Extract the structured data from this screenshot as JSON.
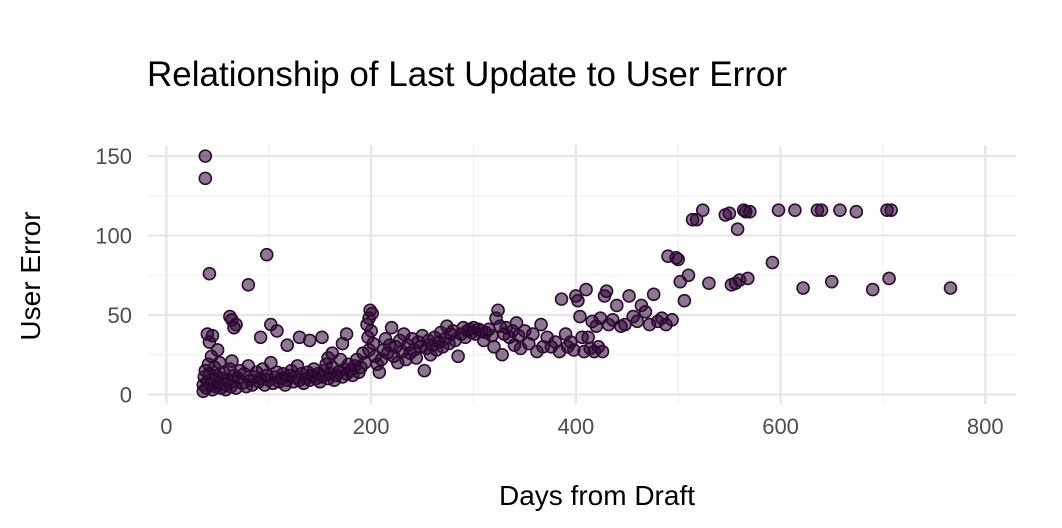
{
  "chart_data": {
    "type": "scatter",
    "title": "Relationship of Last Update to User Error",
    "xlabel": "Days from Draft",
    "ylabel": "User Error",
    "xlim": [
      -18,
      830
    ],
    "ylim": [
      -6,
      157
    ],
    "x_ticks": [
      0,
      200,
      400,
      600,
      800
    ],
    "y_ticks": [
      0,
      50,
      100,
      150
    ],
    "grid": true,
    "legend": "none",
    "point_color": "#2d0a33",
    "point_opacity": 0.55,
    "points": [
      [
        38,
        150
      ],
      [
        38,
        136
      ],
      [
        42,
        76
      ],
      [
        40,
        38
      ],
      [
        45,
        37
      ],
      [
        42,
        33
      ],
      [
        50,
        28
      ],
      [
        62,
        49
      ],
      [
        64,
        47
      ],
      [
        66,
        42
      ],
      [
        68,
        44
      ],
      [
        80,
        69
      ],
      [
        98,
        88
      ],
      [
        92,
        36
      ],
      [
        102,
        44
      ],
      [
        108,
        40
      ],
      [
        118,
        31
      ],
      [
        130,
        36
      ],
      [
        140,
        34
      ],
      [
        152,
        36
      ],
      [
        158,
        23
      ],
      [
        162,
        26
      ],
      [
        172,
        32
      ],
      [
        176,
        38
      ],
      [
        36,
        2
      ],
      [
        36,
        6
      ],
      [
        37,
        11
      ],
      [
        38,
        15
      ],
      [
        39,
        4
      ],
      [
        40,
        8
      ],
      [
        41,
        19
      ],
      [
        42,
        13
      ],
      [
        43,
        6
      ],
      [
        44,
        24
      ],
      [
        45,
        3
      ],
      [
        46,
        9
      ],
      [
        47,
        17
      ],
      [
        48,
        5
      ],
      [
        49,
        12
      ],
      [
        50,
        7
      ],
      [
        52,
        20
      ],
      [
        53,
        4
      ],
      [
        54,
        10
      ],
      [
        56,
        14
      ],
      [
        57,
        6
      ],
      [
        58,
        3
      ],
      [
        60,
        9
      ],
      [
        62,
        16
      ],
      [
        63,
        5
      ],
      [
        64,
        21
      ],
      [
        65,
        8
      ],
      [
        66,
        12
      ],
      [
        68,
        4
      ],
      [
        70,
        10
      ],
      [
        72,
        15
      ],
      [
        74,
        7
      ],
      [
        76,
        13
      ],
      [
        78,
        5
      ],
      [
        80,
        18
      ],
      [
        82,
        9
      ],
      [
        84,
        6
      ],
      [
        86,
        11
      ],
      [
        88,
        14
      ],
      [
        90,
        8
      ],
      [
        92,
        10
      ],
      [
        94,
        16
      ],
      [
        96,
        6
      ],
      [
        98,
        12
      ],
      [
        100,
        9
      ],
      [
        102,
        20
      ],
      [
        104,
        7
      ],
      [
        106,
        11
      ],
      [
        108,
        14
      ],
      [
        110,
        8
      ],
      [
        112,
        10
      ],
      [
        114,
        13
      ],
      [
        116,
        6
      ],
      [
        118,
        9
      ],
      [
        120,
        12
      ],
      [
        122,
        15
      ],
      [
        124,
        8
      ],
      [
        126,
        11
      ],
      [
        128,
        18
      ],
      [
        130,
        9
      ],
      [
        132,
        13
      ],
      [
        134,
        7
      ],
      [
        136,
        10
      ],
      [
        138,
        14
      ],
      [
        140,
        9
      ],
      [
        142,
        12
      ],
      [
        144,
        16
      ],
      [
        146,
        10
      ],
      [
        148,
        13
      ],
      [
        150,
        8
      ],
      [
        152,
        11
      ],
      [
        154,
        15
      ],
      [
        156,
        19
      ],
      [
        158,
        10
      ],
      [
        160,
        13
      ],
      [
        162,
        17
      ],
      [
        164,
        9
      ],
      [
        166,
        12
      ],
      [
        168,
        14
      ],
      [
        170,
        22
      ],
      [
        172,
        11
      ],
      [
        174,
        16
      ],
      [
        176,
        13
      ],
      [
        178,
        19
      ],
      [
        180,
        15
      ],
      [
        182,
        12
      ],
      [
        184,
        18
      ],
      [
        186,
        22
      ],
      [
        188,
        14
      ],
      [
        190,
        17
      ],
      [
        192,
        26
      ],
      [
        194,
        20
      ],
      [
        196,
        44
      ],
      [
        197,
        36
      ],
      [
        198,
        48
      ],
      [
        199,
        53
      ],
      [
        200,
        40
      ],
      [
        201,
        51
      ],
      [
        198,
        28
      ],
      [
        202,
        32
      ],
      [
        204,
        24
      ],
      [
        206,
        19
      ],
      [
        208,
        14
      ],
      [
        210,
        22
      ],
      [
        212,
        28
      ],
      [
        214,
        35
      ],
      [
        216,
        26
      ],
      [
        218,
        31
      ],
      [
        220,
        42
      ],
      [
        222,
        24
      ],
      [
        224,
        30
      ],
      [
        226,
        20
      ],
      [
        228,
        34
      ],
      [
        230,
        27
      ],
      [
        232,
        38
      ],
      [
        234,
        22
      ],
      [
        236,
        31
      ],
      [
        238,
        26
      ],
      [
        240,
        35
      ],
      [
        242,
        28
      ],
      [
        244,
        23
      ],
      [
        246,
        33
      ],
      [
        248,
        30
      ],
      [
        250,
        37
      ],
      [
        252,
        15
      ],
      [
        254,
        29
      ],
      [
        256,
        34
      ],
      [
        258,
        25
      ],
      [
        260,
        31
      ],
      [
        262,
        36
      ],
      [
        264,
        28
      ],
      [
        266,
        33
      ],
      [
        268,
        39
      ],
      [
        270,
        30
      ],
      [
        272,
        35
      ],
      [
        274,
        43
      ],
      [
        276,
        32
      ],
      [
        278,
        38
      ],
      [
        280,
        40
      ],
      [
        282,
        34
      ],
      [
        285,
        24
      ],
      [
        288,
        38
      ],
      [
        290,
        42
      ],
      [
        292,
        36
      ],
      [
        294,
        40
      ],
      [
        296,
        41
      ],
      [
        298,
        39
      ],
      [
        300,
        42
      ],
      [
        302,
        38
      ],
      [
        305,
        41
      ],
      [
        308,
        40
      ],
      [
        310,
        34
      ],
      [
        312,
        39
      ],
      [
        315,
        41
      ],
      [
        318,
        37
      ],
      [
        320,
        30
      ],
      [
        322,
        48
      ],
      [
        324,
        53
      ],
      [
        326,
        43
      ],
      [
        328,
        25
      ],
      [
        330,
        38
      ],
      [
        332,
        42
      ],
      [
        335,
        36
      ],
      [
        338,
        40
      ],
      [
        340,
        31
      ],
      [
        342,
        45
      ],
      [
        344,
        37
      ],
      [
        346,
        29
      ],
      [
        350,
        40
      ],
      [
        354,
        32
      ],
      [
        358,
        38
      ],
      [
        362,
        27
      ],
      [
        366,
        44
      ],
      [
        368,
        30
      ],
      [
        372,
        36
      ],
      [
        376,
        30
      ],
      [
        380,
        33
      ],
      [
        384,
        27
      ],
      [
        386,
        60
      ],
      [
        390,
        38
      ],
      [
        392,
        30
      ],
      [
        395,
        33
      ],
      [
        398,
        28
      ],
      [
        400,
        62
      ],
      [
        402,
        59
      ],
      [
        404,
        49
      ],
      [
        406,
        36
      ],
      [
        408,
        27
      ],
      [
        410,
        66
      ],
      [
        412,
        36
      ],
      [
        414,
        29
      ],
      [
        416,
        46
      ],
      [
        418,
        27
      ],
      [
        420,
        43
      ],
      [
        422,
        30
      ],
      [
        424,
        48
      ],
      [
        426,
        27
      ],
      [
        428,
        62
      ],
      [
        430,
        65
      ],
      [
        432,
        44
      ],
      [
        436,
        47
      ],
      [
        440,
        56
      ],
      [
        444,
        43
      ],
      [
        448,
        44
      ],
      [
        452,
        62
      ],
      [
        456,
        49
      ],
      [
        460,
        46
      ],
      [
        464,
        56
      ],
      [
        468,
        52
      ],
      [
        472,
        44
      ],
      [
        476,
        63
      ],
      [
        480,
        46
      ],
      [
        484,
        48
      ],
      [
        488,
        44
      ],
      [
        490,
        87
      ],
      [
        494,
        47
      ],
      [
        498,
        86
      ],
      [
        500,
        85
      ],
      [
        502,
        71
      ],
      [
        506,
        59
      ],
      [
        510,
        75
      ],
      [
        514,
        110
      ],
      [
        518,
        110
      ],
      [
        524,
        116
      ],
      [
        530,
        70
      ],
      [
        546,
        113
      ],
      [
        550,
        114
      ],
      [
        552,
        69
      ],
      [
        556,
        70
      ],
      [
        558,
        104
      ],
      [
        560,
        72
      ],
      [
        564,
        116
      ],
      [
        566,
        115
      ],
      [
        568,
        73
      ],
      [
        570,
        115
      ],
      [
        592,
        83
      ],
      [
        598,
        116
      ],
      [
        614,
        116
      ],
      [
        622,
        67
      ],
      [
        636,
        116
      ],
      [
        640,
        116
      ],
      [
        650,
        71
      ],
      [
        658,
        116
      ],
      [
        674,
        115
      ],
      [
        690,
        66
      ],
      [
        704,
        116
      ],
      [
        706,
        73
      ],
      [
        708,
        116
      ],
      [
        766,
        67
      ]
    ]
  }
}
